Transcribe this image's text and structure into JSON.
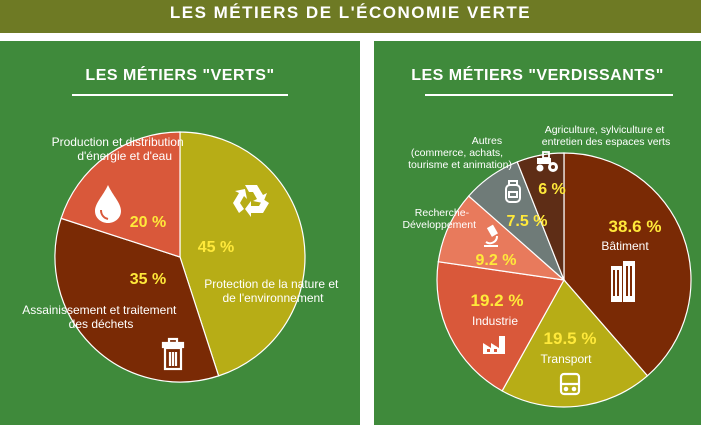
{
  "header": {
    "title": "LES MÉTIERS DE L'ÉCONOMIE VERTE"
  },
  "colors": {
    "header_bg": "#6e7a24",
    "panel_bg": "#3f8a3b",
    "value_text": "#ffe93a"
  },
  "chart_data": [
    {
      "type": "pie",
      "title": "LES MÉTIERS \"VERTS\"",
      "slices": [
        {
          "label": "Protection de la nature et de l'environnement",
          "value": 45,
          "display": "45 %",
          "color": "#b7ad16",
          "icon": "recycle-icon"
        },
        {
          "label": "Assainissement et traitement des déchets",
          "value": 35,
          "display": "35 %",
          "color": "#7a2a05",
          "icon": "trash-icon"
        },
        {
          "label": "Production et distribution d'énergie et d'eau",
          "value": 20,
          "display": "20 %",
          "color": "#d9583a",
          "icon": "water-drop-icon"
        }
      ]
    },
    {
      "type": "pie",
      "title": "LES MÉTIERS \"VERDISSANTS\"",
      "slices": [
        {
          "label": "Bâtiment",
          "value": 38.6,
          "display": "38.6 %",
          "color": "#7a2a05",
          "icon": "building-icon"
        },
        {
          "label": "Transport",
          "value": 19.5,
          "display": "19.5 %",
          "color": "#b7ad16",
          "icon": "bus-icon"
        },
        {
          "label": "Industrie",
          "value": 19.2,
          "display": "19.2 %",
          "color": "#d9583a",
          "icon": "factory-icon"
        },
        {
          "label": "Recherche-Développement",
          "value": 9.2,
          "display": "9.2 %",
          "color": "#e87a5c",
          "icon": "microscope-icon"
        },
        {
          "label": "Autres (commerce, achats, tourisme et animation)",
          "value": 7.5,
          "display": "7.5 %",
          "color": "#6f7b78",
          "icon": "backpack-icon"
        },
        {
          "label": "Agriculture, sylviculture et entretien des espaces verts",
          "value": 6,
          "display": "6 %",
          "color": "#5e2d16",
          "icon": "tractor-icon"
        }
      ]
    }
  ]
}
